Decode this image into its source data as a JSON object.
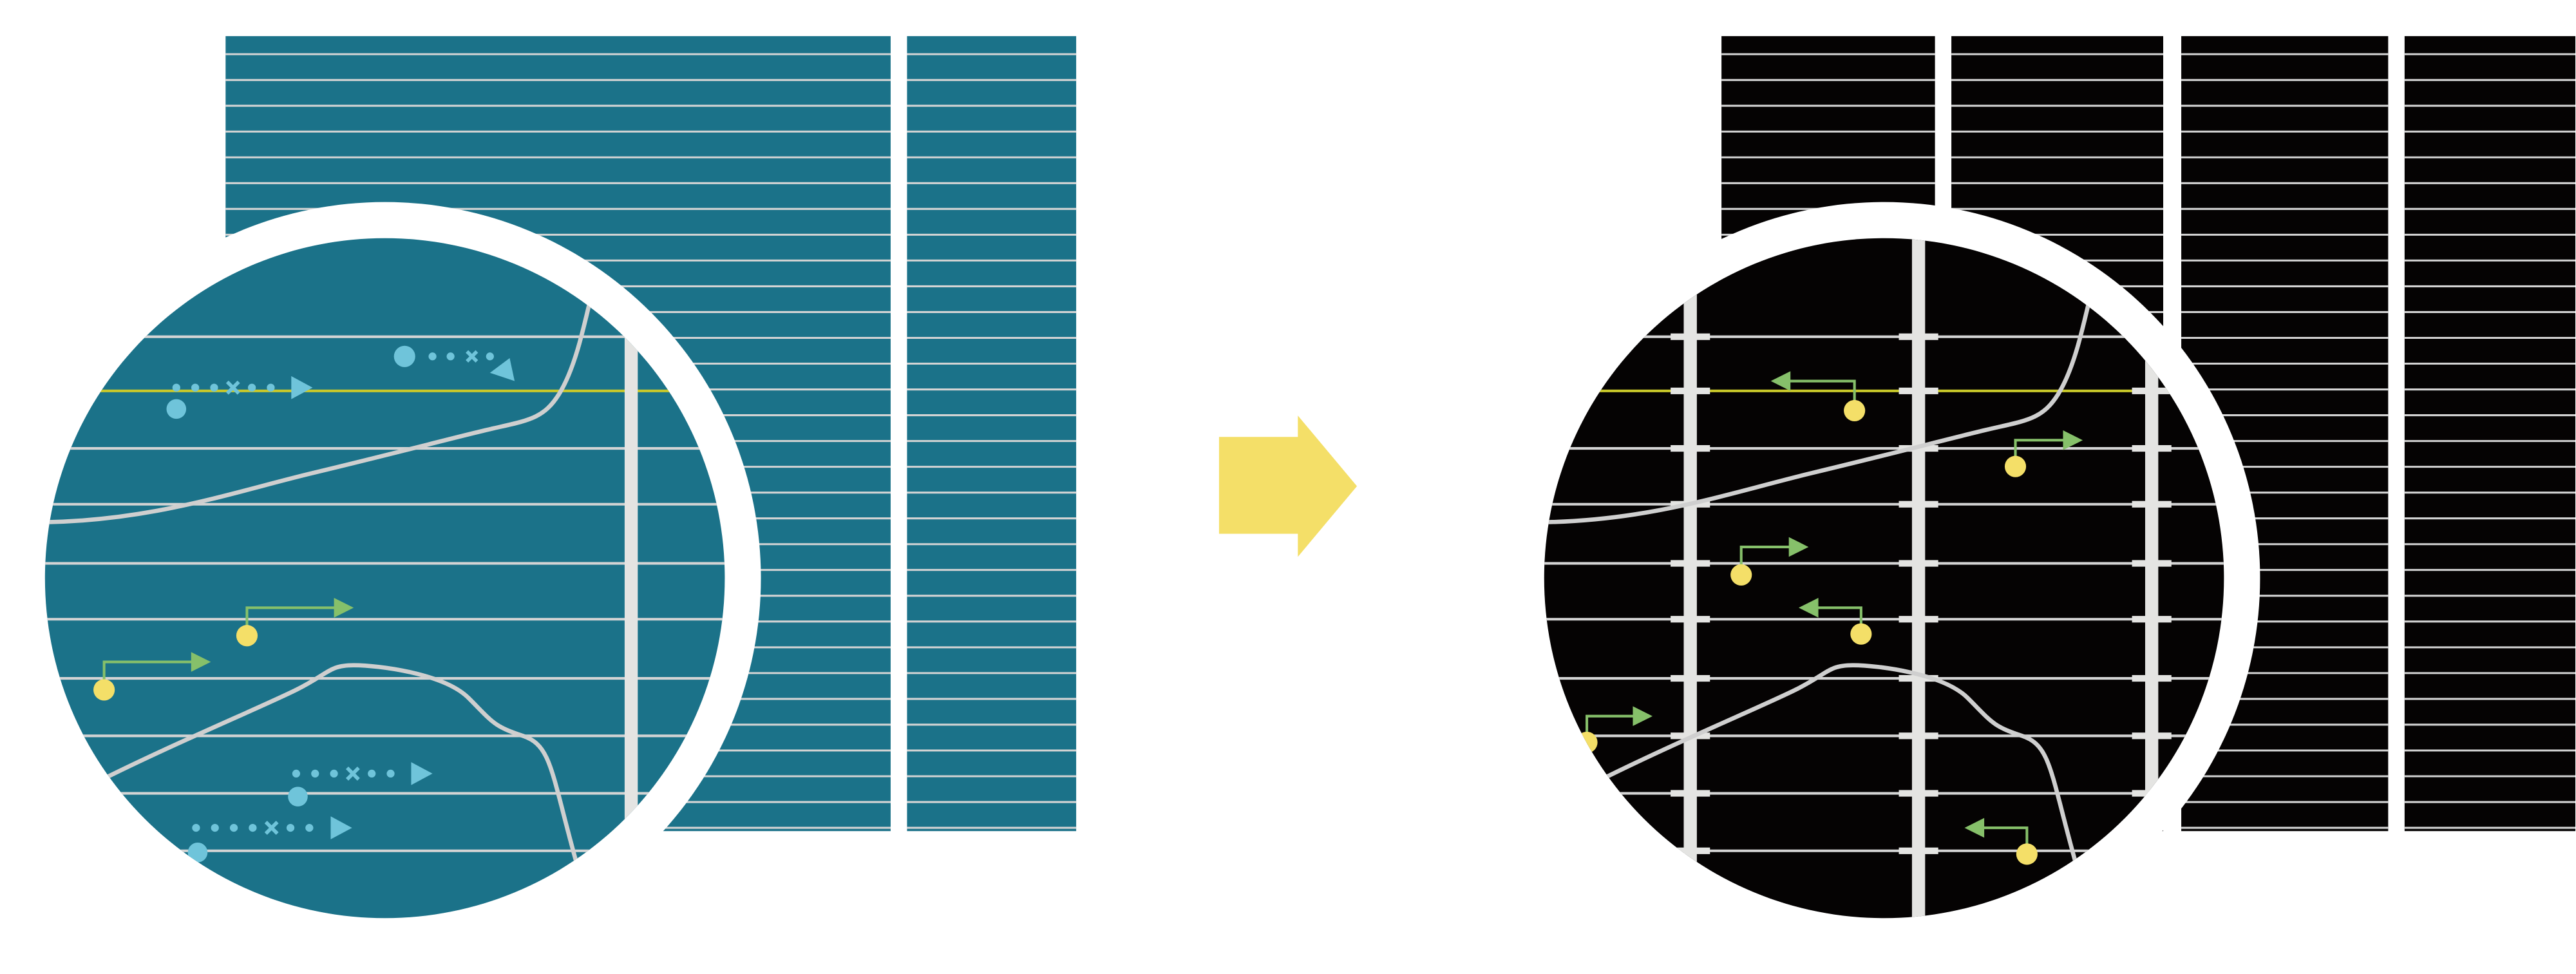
{
  "colors": {
    "background": "#ffffff",
    "left_panel": "#1b7289",
    "right_panel": "#050303",
    "grid_line": "#d4d4d4",
    "highlight_line": "#c8c82a",
    "bar": "#e4e4e2",
    "curve": "#cfcfcf",
    "blue_marker": "#6fc4da",
    "green_arrow": "#86c06a",
    "yellow_dot": "#f4df68",
    "transition_arrow": "#f4df68"
  },
  "icons": {
    "transition": "right-arrow-icon"
  }
}
